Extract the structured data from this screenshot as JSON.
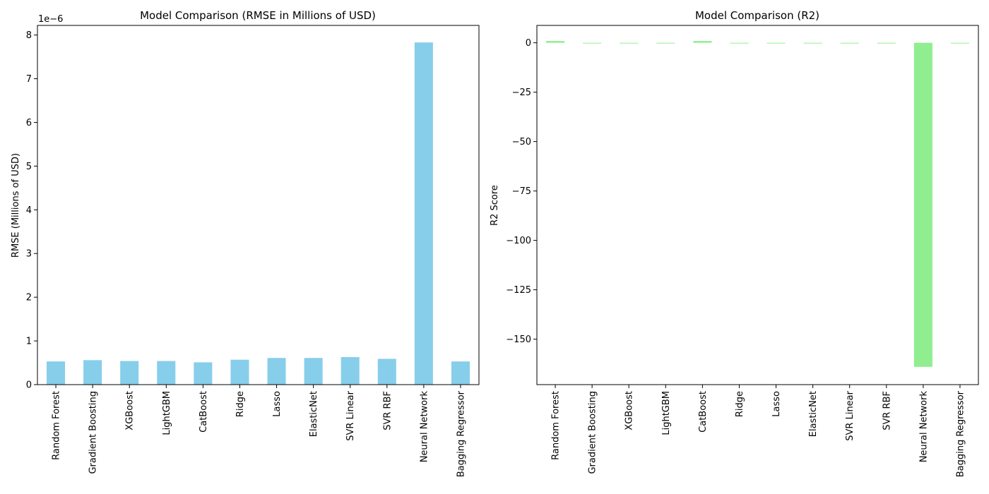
{
  "chart_data": [
    {
      "type": "bar",
      "title": "Model Comparison (RMSE in Millions of USD)",
      "xlabel": "",
      "ylabel": "RMSE (Millions of USD)",
      "scale_note": "1e−6",
      "color": "#87ceeb",
      "categories": [
        "Random Forest",
        "Gradient Boosting",
        "XGBoost",
        "LightGBM",
        "CatBoost",
        "Ridge",
        "Lasso",
        "ElasticNet",
        "SVR Linear",
        "SVR RBF",
        "Neural Network",
        "Bagging Regressor"
      ],
      "values": [
        0.53,
        0.56,
        0.54,
        0.54,
        0.51,
        0.57,
        0.61,
        0.61,
        0.63,
        0.59,
        7.83,
        0.53
      ],
      "yticks": [
        0,
        1,
        2,
        3,
        4,
        5,
        6,
        7,
        8
      ],
      "ytick_labels": [
        "0",
        "1",
        "2",
        "3",
        "4",
        "5",
        "6",
        "7",
        "8"
      ],
      "ylim": [
        0,
        8.22
      ]
    },
    {
      "type": "bar",
      "title": "Model Comparison (R2)",
      "xlabel": "",
      "ylabel": "R2 Score",
      "color": "#90ee90",
      "categories": [
        "Random Forest",
        "Gradient Boosting",
        "XGBoost",
        "LightGBM",
        "CatBoost",
        "Ridge",
        "Lasso",
        "ElasticNet",
        "SVR Linear",
        "SVR RBF",
        "Neural Network",
        "Bagging Regressor"
      ],
      "values": [
        0.9,
        -0.1,
        -0.1,
        -0.1,
        0.9,
        -0.1,
        -0.1,
        -0.1,
        -0.1,
        -0.1,
        -164.0,
        -0.1
      ],
      "yticks": [
        0,
        -25,
        -50,
        -75,
        -100,
        -125,
        -150
      ],
      "ytick_labels": [
        "0",
        "−25",
        "−50",
        "−75",
        "−100",
        "−125",
        "−150"
      ],
      "ylim": [
        -173.0,
        8.8
      ]
    }
  ]
}
